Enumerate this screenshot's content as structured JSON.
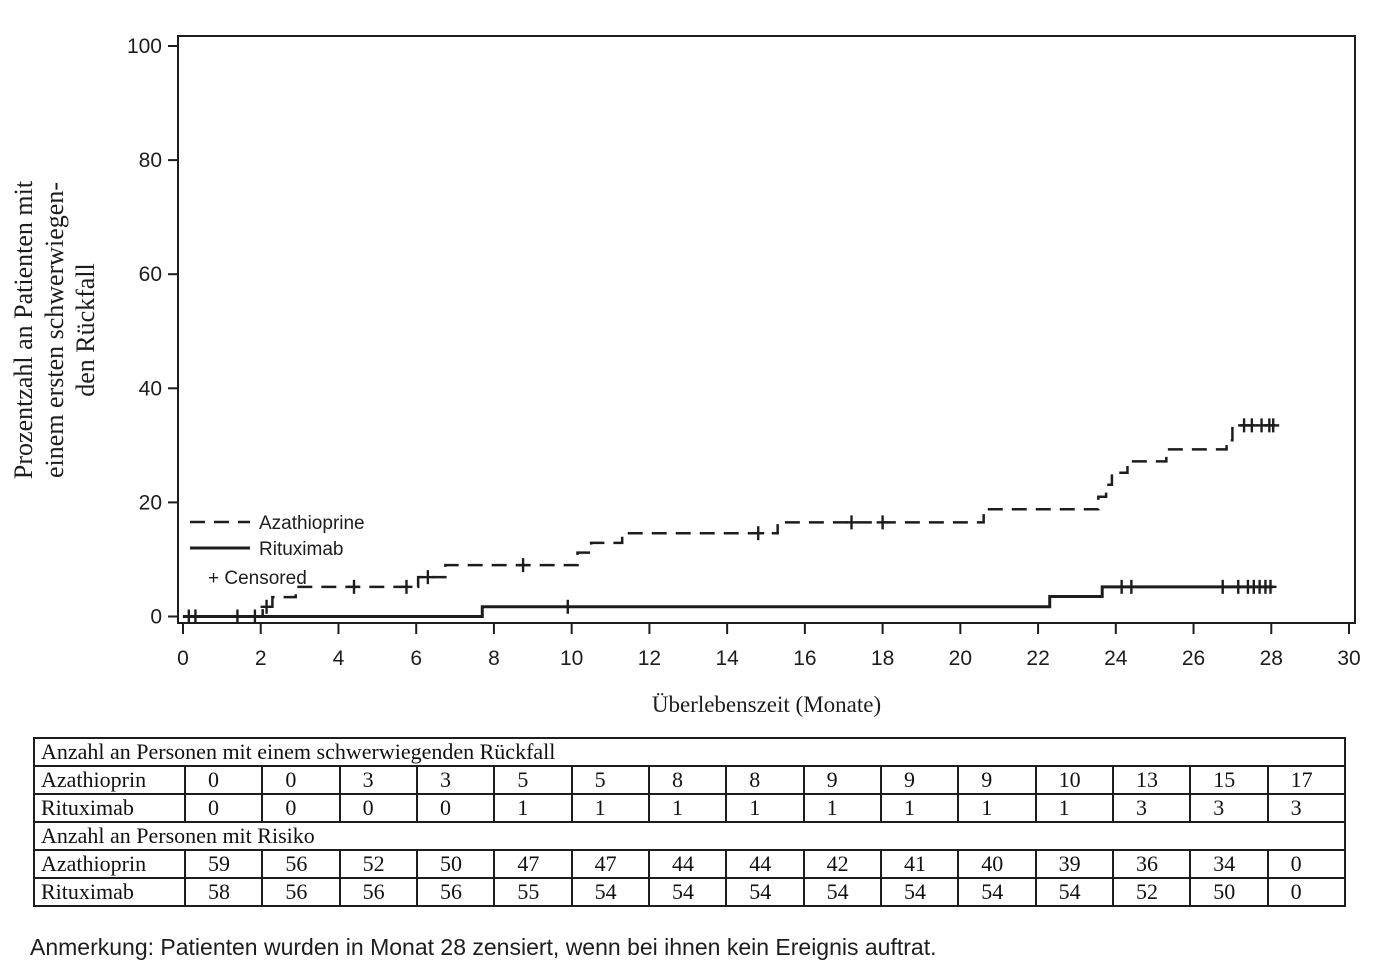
{
  "colors": {
    "line": "#1d1d1d",
    "background": "#ffffff"
  },
  "footnote": "Anmerkung: Patienten wurden in Monat 28 zensiert, wenn bei ihnen kein Ereignis auftrat.",
  "chart_data": {
    "type": "line",
    "subtype": "kaplan-meier-step",
    "title": "",
    "xlabel": "Überlebenszeit (Monate)",
    "ylabel_lines": [
      "Prozentzahl an Patienten mit",
      "einem ersten schwerwiegen-",
      "den Rückfall"
    ],
    "xlim": [
      0,
      30
    ],
    "ylim": [
      0,
      100
    ],
    "xticks": [
      0,
      2,
      4,
      6,
      8,
      10,
      12,
      14,
      16,
      18,
      20,
      22,
      24,
      26,
      28,
      30
    ],
    "yticks": [
      0,
      20,
      40,
      60,
      80,
      100
    ],
    "grid": false,
    "legend_position": "inside-lower-left",
    "legend": {
      "censored_symbol": "+",
      "censored_label": "Censored"
    },
    "series": [
      {
        "name": "Azathioprine",
        "style": "dashed",
        "steps": [
          [
            0,
            0
          ],
          [
            2.05,
            1.7
          ],
          [
            2.3,
            3.4
          ],
          [
            2.9,
            5.2
          ],
          [
            6.05,
            6.9
          ],
          [
            6.75,
            9.0
          ],
          [
            10.15,
            11.2
          ],
          [
            10.5,
            12.9
          ],
          [
            11.3,
            14.6
          ],
          [
            15.3,
            16.5
          ],
          [
            20.6,
            18.8
          ],
          [
            23.55,
            21.0
          ],
          [
            23.75,
            23.1
          ],
          [
            23.9,
            25.2
          ],
          [
            24.3,
            27.2
          ],
          [
            25.3,
            29.3
          ],
          [
            26.85,
            30.9
          ],
          [
            27.0,
            33.5
          ]
        ],
        "end_x": 28.1,
        "censored_x": [
          2.15,
          4.4,
          5.75,
          6.3,
          8.75,
          14.8,
          17.2,
          18.0,
          27.3,
          27.5,
          27.75,
          27.95,
          28.05
        ]
      },
      {
        "name": "Rituximab",
        "style": "solid",
        "steps": [
          [
            0,
            0
          ],
          [
            7.7,
            1.7
          ],
          [
            22.3,
            3.5
          ],
          [
            23.65,
            5.2
          ]
        ],
        "end_x": 28.05,
        "censored_x": [
          0.15,
          0.32,
          1.4,
          1.85,
          9.9,
          24.15,
          24.4,
          26.75,
          27.15,
          27.4,
          27.55,
          27.7,
          27.85,
          27.98
        ]
      }
    ]
  },
  "table": {
    "sections": [
      {
        "header": "Anzahl an Personen mit einem schwerwiegenden Rückfall",
        "rows": [
          {
            "label": "Azathioprin",
            "values": [
              "0",
              "0",
              "3",
              "3",
              "5",
              "5",
              "8",
              "8",
              "9",
              "9",
              "9",
              "10",
              "13",
              "15",
              "17"
            ]
          },
          {
            "label": "Rituximab",
            "values": [
              "0",
              "0",
              "0",
              "0",
              "1",
              "1",
              "1",
              "1",
              "1",
              "1",
              "1",
              "1",
              "3",
              "3",
              "3"
            ]
          }
        ]
      },
      {
        "header": "Anzahl an Personen mit Risiko",
        "rows": [
          {
            "label": "Azathioprin",
            "values": [
              "59",
              "56",
              "52",
              "50",
              "47",
              "47",
              "44",
              "44",
              "42",
              "41",
              "40",
              "39",
              "36",
              "34",
              "0"
            ]
          },
          {
            "label": "Rituximab",
            "values": [
              "58",
              "56",
              "56",
              "56",
              "55",
              "54",
              "54",
              "54",
              "54",
              "54",
              "54",
              "54",
              "52",
              "50",
              "0"
            ]
          }
        ]
      }
    ]
  }
}
